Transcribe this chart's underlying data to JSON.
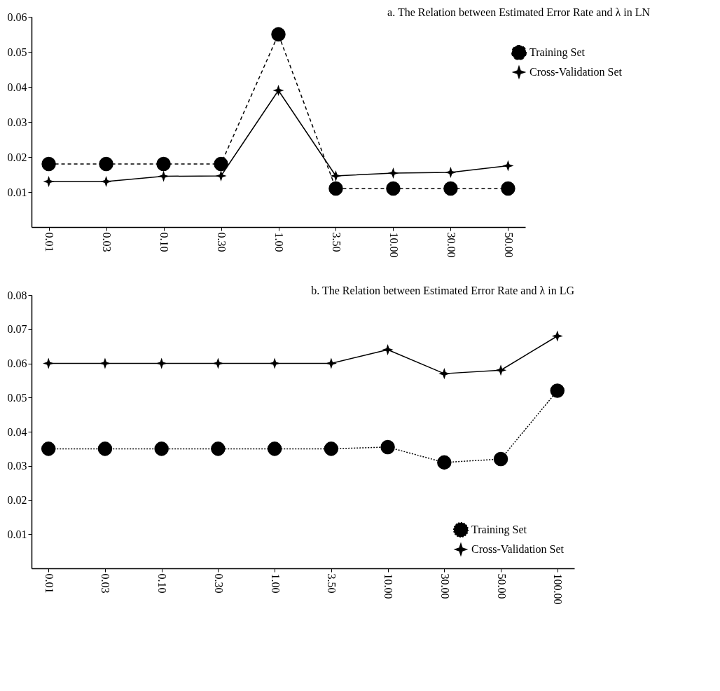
{
  "chart_data": [
    {
      "type": "line",
      "title": "a. The Relation between Estimated Error Rate and λ in LN",
      "categories": [
        "0.01",
        "0.03",
        "0.10",
        "0.30",
        "1.00",
        "3.50",
        "10.00",
        "30.00",
        "50.00"
      ],
      "series": [
        {
          "name": "Training Set",
          "color": "#000000",
          "marker": "circle",
          "line_style": "dashed",
          "values": [
            0.018,
            0.018,
            0.018,
            0.018,
            0.055,
            0.011,
            0.011,
            0.011,
            0.011
          ]
        },
        {
          "name": "Cross-Validation Set",
          "color": "#000000",
          "marker": "cross",
          "line_style": "solid",
          "values": [
            0.013,
            0.013,
            0.0145,
            0.0146,
            0.039,
            0.0146,
            0.0154,
            0.0156,
            0.0175
          ]
        }
      ],
      "ylim": [
        0,
        0.06
      ],
      "yticks": [
        0.01,
        0.02,
        0.03,
        0.04,
        0.05,
        0.06
      ],
      "grid": false,
      "legend": "right"
    },
    {
      "type": "line",
      "title": "b. The Relation between Estimated Error Rate and λ in LG",
      "categories": [
        "0.01",
        "0.03",
        "0.10",
        "0.30",
        "1.00",
        "3.50",
        "10.00",
        "30.00",
        "50.00",
        "100.00"
      ],
      "series": [
        {
          "name": "Training Set",
          "color": "#000000",
          "marker": "circle",
          "line_style": "dotted",
          "values": [
            0.035,
            0.035,
            0.035,
            0.035,
            0.035,
            0.035,
            0.0355,
            0.031,
            0.032,
            0.052
          ]
        },
        {
          "name": "Cross-Validation Set",
          "color": "#000000",
          "marker": "cross",
          "line_style": "solid",
          "values": [
            0.06,
            0.06,
            0.06,
            0.06,
            0.06,
            0.06,
            0.064,
            0.057,
            0.058,
            0.068
          ]
        }
      ],
      "ylim": [
        0,
        0.08
      ],
      "yticks": [
        0.01,
        0.02,
        0.03,
        0.04,
        0.05,
        0.06,
        0.07,
        0.08
      ],
      "grid": false,
      "legend": "bottom right"
    }
  ]
}
